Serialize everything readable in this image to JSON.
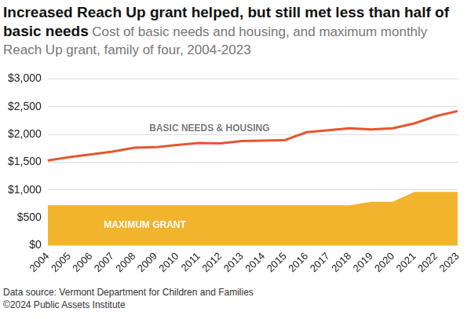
{
  "chart_data": {
    "type": "line",
    "title": "Increased Reach Up grant helped, but still met less than half of basic needs",
    "subtitle": "Cost of basic needs and housing, and maximum monthly Reach Up grant, family of four, 2004-2023",
    "notes": [
      "Data source: Vermont Department for Children and Families",
      "©2024 Public Assets Institute"
    ],
    "categories": [
      "2004",
      "2005",
      "2006",
      "2007",
      "2008",
      "2009",
      "2010",
      "2011",
      "2012",
      "2013",
      "2014",
      "2015",
      "2016",
      "2017",
      "2018",
      "2019",
      "2020",
      "2021",
      "2022",
      "2023"
    ],
    "series": [
      {
        "name": "BASIC NEEDS & HOUSING",
        "type": "line",
        "color": "#e4572e",
        "values": [
          1530,
          1590,
          1640,
          1690,
          1760,
          1770,
          1810,
          1845,
          1840,
          1880,
          1890,
          1900,
          2040,
          2075,
          2110,
          2090,
          2110,
          2200,
          2330,
          2420
        ]
      },
      {
        "name": "MAXIMUM GRANT",
        "type": "area",
        "color": "#f2b32d",
        "values": [
          725,
          725,
          725,
          725,
          725,
          725,
          725,
          725,
          725,
          725,
          725,
          725,
          725,
          725,
          725,
          790,
          790,
          965,
          965,
          965
        ]
      }
    ],
    "ylim": [
      0,
      3000
    ],
    "yticks": [
      {
        "value": 0,
        "label": "$0"
      },
      {
        "value": 500,
        "label": "$500"
      },
      {
        "value": 1000,
        "label": "$1,000"
      },
      {
        "value": 1500,
        "label": "$1,500"
      },
      {
        "value": 2000,
        "label": "$2,000"
      },
      {
        "value": 2500,
        "label": "$2,500"
      },
      {
        "value": 3000,
        "label": "$3,000"
      }
    ],
    "grid": "y"
  }
}
